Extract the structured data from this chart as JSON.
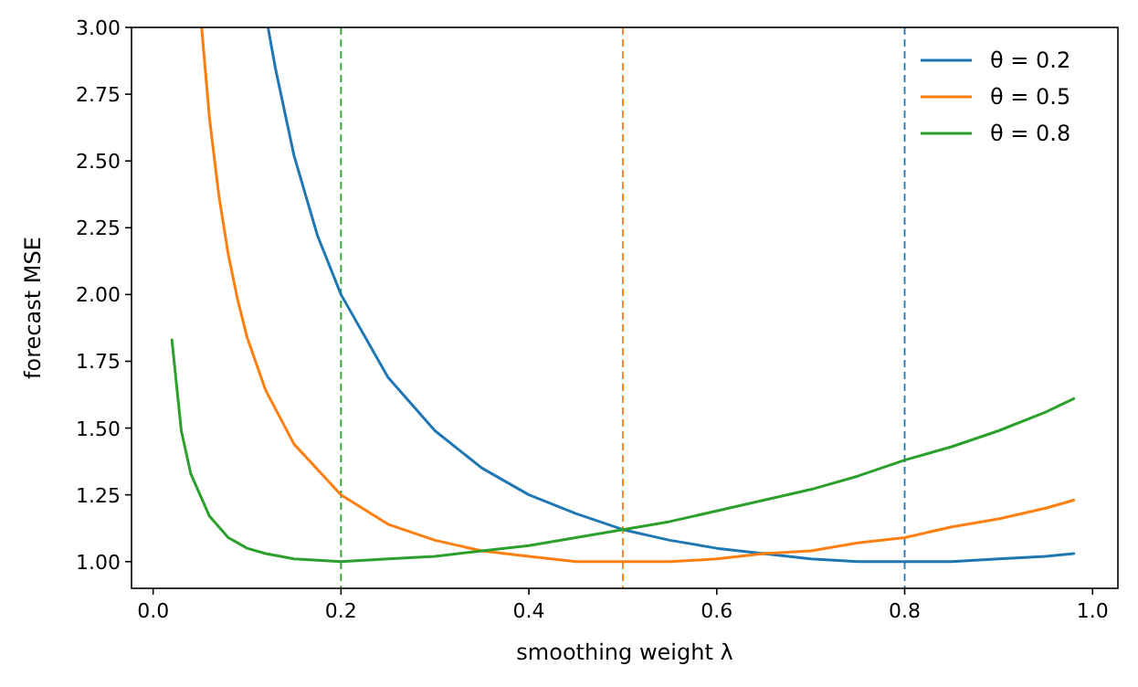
{
  "chart_data": {
    "type": "line",
    "xlabel": "smoothing weight λ",
    "ylabel": "forecast MSE",
    "xlim": [
      -0.023,
      1.027
    ],
    "ylim": [
      0.9,
      3.0
    ],
    "xticks": [
      {
        "value": 0,
        "label": "0.0"
      },
      {
        "value": 0.2,
        "label": "0.2"
      },
      {
        "value": 0.4,
        "label": "0.4"
      },
      {
        "value": 0.6,
        "label": "0.6"
      },
      {
        "value": 0.8,
        "label": "0.8"
      },
      {
        "value": 1,
        "label": "1.0"
      }
    ],
    "yticks": [
      {
        "value": 1,
        "label": "1.00"
      },
      {
        "value": 1.25,
        "label": "1.25"
      },
      {
        "value": 1.5,
        "label": "1.50"
      },
      {
        "value": 1.75,
        "label": "1.75"
      },
      {
        "value": 2,
        "label": "2.00"
      },
      {
        "value": 2.25,
        "label": "2.25"
      },
      {
        "value": 2.5,
        "label": "2.50"
      },
      {
        "value": 2.75,
        "label": "2.75"
      },
      {
        "value": 3,
        "label": "3.00"
      }
    ],
    "grid": false,
    "legend": "top right",
    "line_style": "solid",
    "marker": "none",
    "series": [
      {
        "name": "θ = 0.2",
        "color": "#1f77b4",
        "x": [
          0.1223,
          0.13,
          0.15,
          0.175,
          0.2,
          0.25,
          0.3,
          0.35,
          0.4,
          0.45,
          0.5,
          0.55,
          0.6,
          0.65,
          0.7,
          0.75,
          0.8,
          0.85,
          0.9,
          0.95,
          0.98
        ],
        "values": [
          3.0,
          2.85,
          2.52,
          2.22,
          2.0,
          1.69,
          1.49,
          1.35,
          1.25,
          1.18,
          1.12,
          1.08,
          1.05,
          1.03,
          1.01,
          1.0,
          1.0,
          1.0,
          1.01,
          1.02,
          1.03
        ]
      },
      {
        "name": "θ = 0.5",
        "color": "#ff7f0e",
        "x": [
          0.0516,
          0.06,
          0.07,
          0.08,
          0.09,
          0.1,
          0.12,
          0.15,
          0.2,
          0.25,
          0.3,
          0.35,
          0.4,
          0.45,
          0.5,
          0.55,
          0.6,
          0.65,
          0.7,
          0.75,
          0.8,
          0.85,
          0.9,
          0.95,
          0.98
        ],
        "values": [
          3.0,
          2.66,
          2.37,
          2.15,
          1.98,
          1.84,
          1.64,
          1.44,
          1.25,
          1.14,
          1.08,
          1.04,
          1.02,
          1.0,
          1.0,
          1.0,
          1.01,
          1.03,
          1.04,
          1.07,
          1.09,
          1.13,
          1.16,
          1.2,
          1.23
        ]
      },
      {
        "name": "θ = 0.8",
        "color": "#2ca02c",
        "x": [
          0.02,
          0.03,
          0.04,
          0.06,
          0.08,
          0.1,
          0.12,
          0.15,
          0.2,
          0.25,
          0.3,
          0.35,
          0.4,
          0.45,
          0.5,
          0.55,
          0.6,
          0.65,
          0.7,
          0.75,
          0.8,
          0.85,
          0.9,
          0.95,
          0.98
        ],
        "values": [
          1.83,
          1.49,
          1.33,
          1.17,
          1.09,
          1.05,
          1.03,
          1.01,
          1.0,
          1.01,
          1.02,
          1.04,
          1.06,
          1.09,
          1.12,
          1.15,
          1.19,
          1.23,
          1.27,
          1.32,
          1.38,
          1.43,
          1.49,
          1.56,
          1.61
        ]
      }
    ],
    "ref_lines": [
      {
        "axis": "x",
        "value": 0.2,
        "color": "#2ca02c",
        "line_style": "dashed"
      },
      {
        "axis": "x",
        "value": 0.5,
        "color": "#ff7f0e",
        "line_style": "dashed"
      },
      {
        "axis": "x",
        "value": 0.8,
        "color": "#1f77b4",
        "line_style": "dashed"
      }
    ]
  }
}
